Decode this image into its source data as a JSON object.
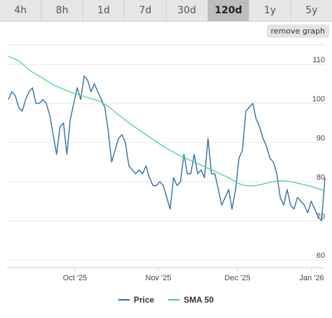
{
  "tabs": [
    {
      "label": "4h",
      "active": false
    },
    {
      "label": "8h",
      "active": false
    },
    {
      "label": "1d",
      "active": false
    },
    {
      "label": "7d",
      "active": false
    },
    {
      "label": "30d",
      "active": false
    },
    {
      "label": "120d",
      "active": true
    },
    {
      "label": "1y",
      "active": false
    },
    {
      "label": "5y",
      "active": false
    }
  ],
  "remove_graph_label": "remove graph",
  "legend": [
    {
      "label": "Price",
      "color": "#2f6da8"
    },
    {
      "label": "SMA 50",
      "color": "#3fcf7a"
    }
  ],
  "chart_data": {
    "type": "line",
    "x_tick_labels": [
      "Oct '25",
      "Nov '25",
      "Dec '25",
      "Jan '26"
    ],
    "y_ticks": [
      60,
      70,
      80,
      90,
      100,
      110
    ],
    "ylim": [
      58,
      115
    ],
    "series": [
      {
        "name": "Price",
        "color": "#2f6da8",
        "values": [
          101,
          103,
          102,
          99,
          98,
          101,
          103,
          104,
          100,
          100,
          101,
          100,
          97,
          92,
          87,
          94,
          95,
          87,
          96,
          100,
          104,
          101,
          107,
          106,
          103,
          105,
          103,
          101,
          99,
          93,
          85,
          88,
          91,
          92,
          90,
          84,
          83,
          82,
          83,
          82,
          84,
          81,
          79,
          79,
          80,
          79,
          76,
          73,
          81,
          79,
          80,
          87,
          82,
          82,
          87,
          82,
          83,
          81,
          91,
          82,
          82,
          78,
          74,
          76,
          78,
          73,
          78,
          86,
          88,
          98,
          99,
          100,
          96,
          94,
          91,
          89,
          86,
          85,
          82,
          76,
          74,
          78,
          74,
          73,
          76,
          75,
          74,
          72,
          75,
          73,
          71,
          70,
          81
        ]
      },
      {
        "name": "SMA 50",
        "color": "#3fcf7a",
        "values": [
          112,
          111.7,
          111.3,
          110.8,
          110.2,
          109.4,
          108.6,
          108,
          107.5,
          107,
          106.5,
          105.8,
          105.3,
          104.8,
          104.4,
          104,
          103.6,
          103.3,
          102.9,
          102.6,
          102.3,
          102,
          101.8,
          101.5,
          101.2,
          101,
          100.7,
          100.3,
          99.8,
          99.2,
          98.5,
          97.8,
          97.1,
          96.4,
          95.7,
          95,
          94.4,
          93.8,
          93.2,
          92.6,
          92,
          91.4,
          90.8,
          90.2,
          89.6,
          89,
          88.5,
          88,
          87.5,
          87,
          86.6,
          86.2,
          85.8,
          85.4,
          85,
          84.6,
          84.2,
          83.8,
          83.4,
          83,
          82.6,
          82.2,
          81.8,
          81.4,
          81,
          80.5,
          80,
          79.5,
          79.2,
          79,
          78.9,
          78.9,
          79,
          79.2,
          79.4,
          79.6,
          79.8,
          80,
          80.1,
          80.2,
          80.2,
          80.1,
          80,
          79.8,
          79.6,
          79.4,
          79.2,
          79,
          78.8,
          78.5,
          78.2,
          77.9,
          77.5
        ]
      }
    ]
  }
}
